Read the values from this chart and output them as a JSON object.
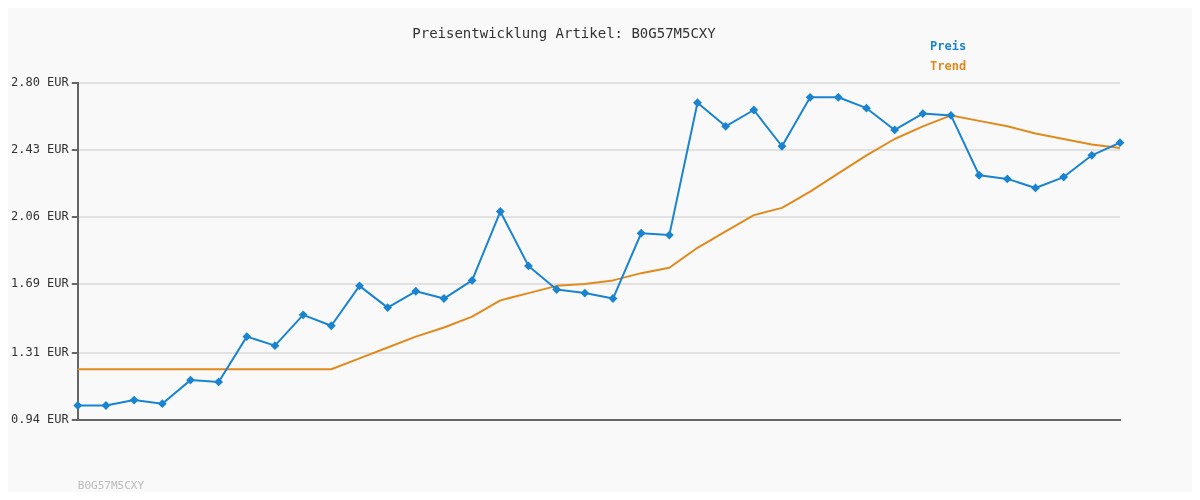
{
  "chart_data": {
    "type": "line",
    "title": "Preisentwicklung Artikel: B0G57M5CXY",
    "categories": [
      null,
      null,
      null,
      null,
      null,
      null,
      null,
      null,
      null,
      null,
      null,
      null,
      null,
      null,
      null,
      null,
      null,
      null,
      null,
      null,
      null,
      null,
      null,
      null,
      null,
      null,
      null,
      null,
      null,
      null,
      null,
      null,
      null,
      null,
      null,
      null,
      null,
      null
    ],
    "series": [
      {
        "name": "Preis",
        "color": "#1a84d0",
        "marker": "diamond",
        "values": [
          1.02,
          1.02,
          1.05,
          1.03,
          1.16,
          1.15,
          1.4,
          1.35,
          1.52,
          1.46,
          1.68,
          1.56,
          1.65,
          1.61,
          1.71,
          2.09,
          1.79,
          1.66,
          1.64,
          1.61,
          1.97,
          1.96,
          2.69,
          2.56,
          2.65,
          2.45,
          2.72,
          2.72,
          2.66,
          2.54,
          2.63,
          2.62,
          2.29,
          2.27,
          2.22,
          2.28,
          2.4,
          2.47
        ]
      },
      {
        "name": "Trend",
        "color": "#e08a1e",
        "marker": "none",
        "values": [
          1.22,
          1.22,
          1.22,
          1.22,
          1.22,
          1.22,
          1.22,
          1.22,
          1.22,
          1.22,
          1.28,
          1.34,
          1.4,
          1.45,
          1.51,
          1.6,
          1.64,
          1.68,
          1.69,
          1.71,
          1.75,
          1.78,
          1.89,
          1.98,
          2.07,
          2.11,
          2.2,
          2.3,
          2.4,
          2.49,
          2.56,
          2.62,
          2.59,
          2.56,
          2.52,
          2.49,
          2.46,
          2.44
        ]
      }
    ],
    "ylim": [
      0.94,
      2.8
    ],
    "yticks": [
      {
        "value": 0.94,
        "label": "0.94 EUR"
      },
      {
        "value": 1.31,
        "label": "1.31 EUR"
      },
      {
        "value": 1.69,
        "label": "1.69 EUR"
      },
      {
        "value": 2.06,
        "label": "2.06 EUR"
      },
      {
        "value": 2.43,
        "label": "2.43 EUR"
      },
      {
        "value": 2.8,
        "label": "2.80 EUR"
      }
    ],
    "tick_labels": "y",
    "grid": "y",
    "legend": "top right",
    "line_style": "solid",
    "annotations": [
      "B0G57M5CXY"
    ]
  }
}
